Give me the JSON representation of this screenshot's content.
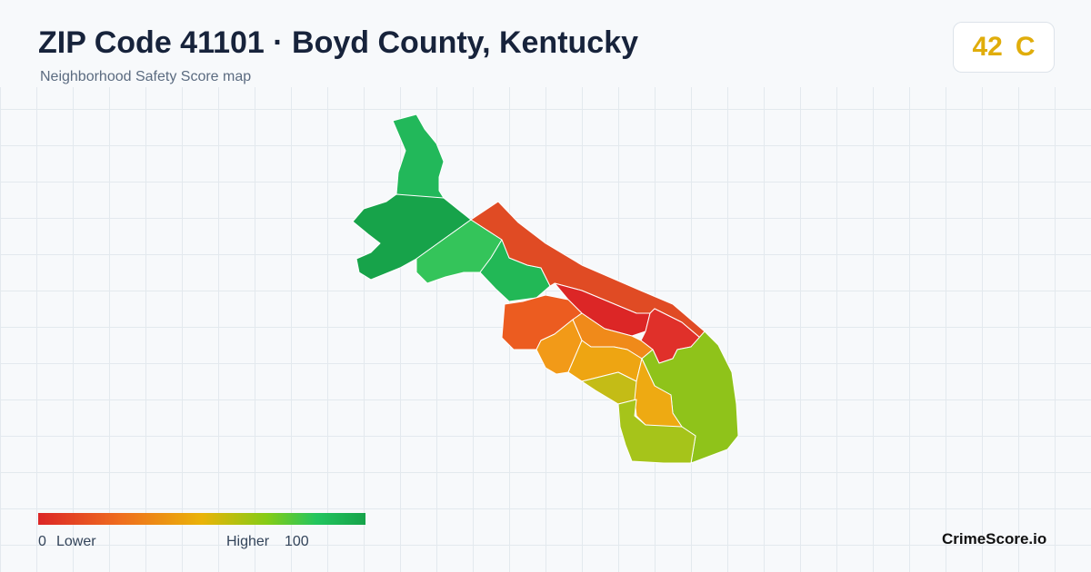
{
  "header": {
    "title": "ZIP Code 41101 · Boyd County, Kentucky",
    "subtitle": "Neighborhood Safety Score map"
  },
  "badge": {
    "score": "42",
    "grade": "C"
  },
  "legend": {
    "min": "0",
    "min_label": "Lower",
    "max_label": "Higher",
    "max": "100"
  },
  "footer": {
    "brand": "CrimeScore.io"
  }
}
